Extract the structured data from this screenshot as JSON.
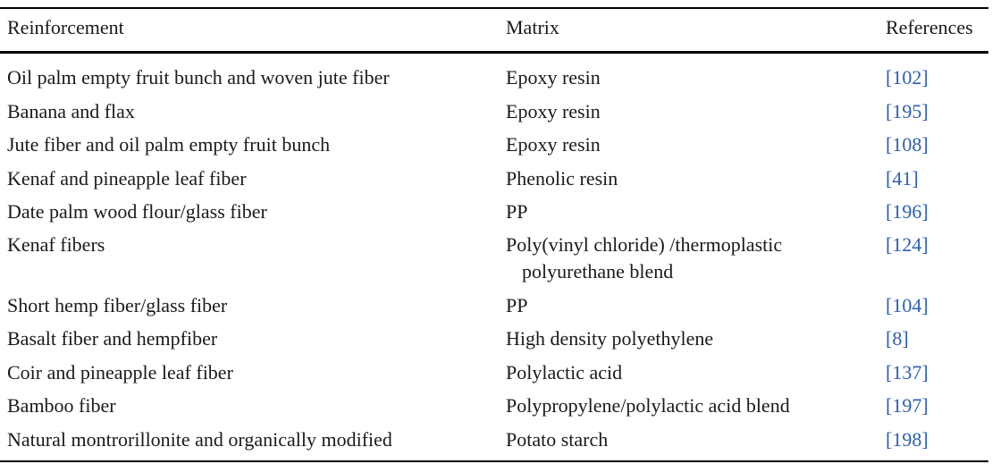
{
  "table": {
    "headers": {
      "reinforcement": "Reinforcement",
      "matrix": "Matrix",
      "references": "References"
    },
    "rows": [
      {
        "reinforcement": "Oil palm empty fruit bunch and woven jute fiber",
        "matrix": "Epoxy resin",
        "matrix_cont": "",
        "ref": "102"
      },
      {
        "reinforcement": "Banana and flax",
        "matrix": "Epoxy resin",
        "matrix_cont": "",
        "ref": "195"
      },
      {
        "reinforcement": "Jute fiber and oil palm empty fruit bunch",
        "matrix": "Epoxy resin",
        "matrix_cont": "",
        "ref": "108"
      },
      {
        "reinforcement": "Kenaf and pineapple leaf fiber",
        "matrix": "Phenolic resin",
        "matrix_cont": "",
        "ref": "41"
      },
      {
        "reinforcement": "Date palm wood flour/glass fiber",
        "matrix": "PP",
        "matrix_cont": "",
        "ref": "196"
      },
      {
        "reinforcement": "Kenaf fibers",
        "matrix": "Poly(vinyl chloride) /thermoplastic",
        "matrix_cont": "polyurethane blend",
        "ref": "124"
      },
      {
        "reinforcement": "Short hemp fiber/glass fiber",
        "matrix": "PP",
        "matrix_cont": "",
        "ref": "104"
      },
      {
        "reinforcement": "Basalt fiber and hempfiber",
        "matrix": "High density polyethylene",
        "matrix_cont": "",
        "ref": "8"
      },
      {
        "reinforcement": "Coir and pineapple leaf fiber",
        "matrix": "Polylactic acid",
        "matrix_cont": "",
        "ref": "137"
      },
      {
        "reinforcement": "Bamboo fiber",
        "matrix": "Polypropylene/polylactic acid blend",
        "matrix_cont": "",
        "ref": "197"
      },
      {
        "reinforcement": "Natural montrorillonite and organically modified",
        "matrix": "Potato starch",
        "matrix_cont": "",
        "ref": "198"
      }
    ]
  },
  "colors": {
    "link": "#2b5fb0",
    "text": "#1a1a1a",
    "rule": "#000000"
  }
}
